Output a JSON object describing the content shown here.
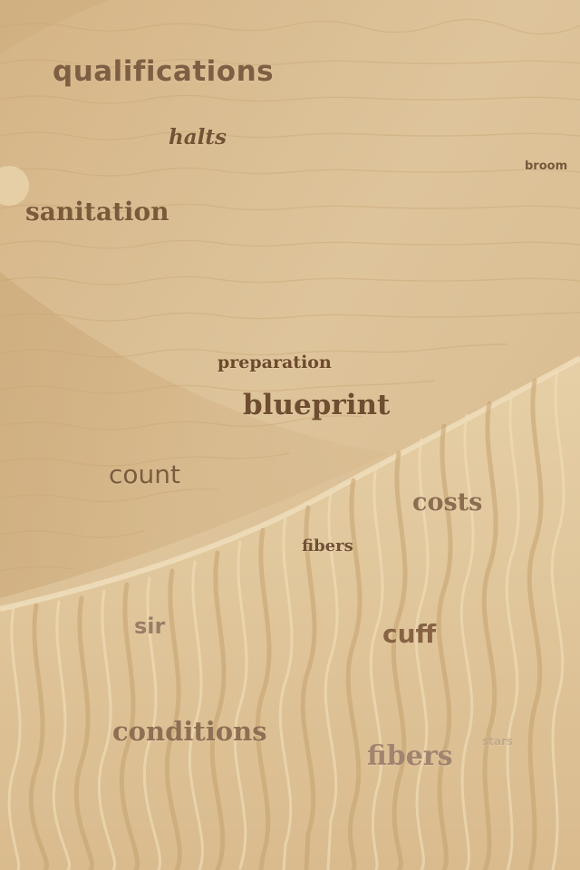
{
  "scene": {
    "description_colors": {
      "sand_light": "#e2c9a0",
      "sand_mid": "#d6b789",
      "sand_shadow": "#c9a675",
      "ridge_highlight": "#efdcb8",
      "text_brown": "#7a5a3c"
    }
  },
  "words": {
    "qualifications": "qualifications",
    "halts": "halts",
    "broom": "broom",
    "sanitation": "sanitation",
    "preparation": "preparation",
    "blueprint": "blueprint",
    "count": "count",
    "costs": "costs",
    "fibers_small": "fibers",
    "sir": "sir",
    "cuff": "cuff",
    "conditions": "conditions",
    "fibers_large": "fibers",
    "faint_word": "stars"
  }
}
